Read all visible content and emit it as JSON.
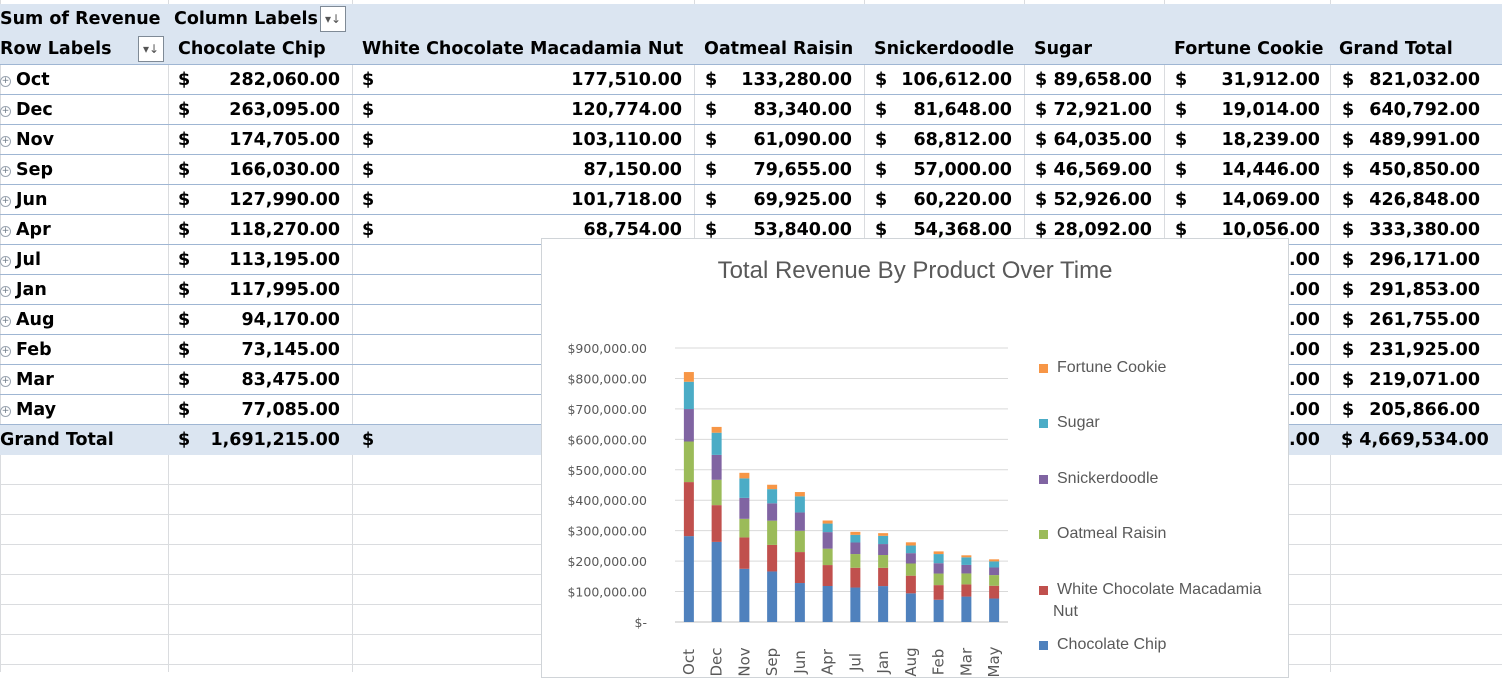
{
  "pivot": {
    "value_label": "Sum of  Revenue",
    "column_labels": "Column Labels",
    "row_labels": "Row Labels",
    "columns": [
      "Chocolate Chip",
      "White Chocolate Macadamia Nut",
      "Oatmeal Raisin",
      "Snickerdoodle",
      "Sugar",
      "Fortune Cookie",
      "Grand Total"
    ],
    "rows": [
      {
        "label": "Oct",
        "cc": "282,060.00",
        "wcm": "177,510.00",
        "or": "133,280.00",
        "sn": "106,612.00",
        "su": "89,658.00",
        "fc": "31,912.00",
        "gt": "821,032.00"
      },
      {
        "label": "Dec",
        "cc": "263,095.00",
        "wcm": "120,774.00",
        "or": "83,340.00",
        "sn": "81,648.00",
        "su": "72,921.00",
        "fc": "19,014.00",
        "gt": "640,792.00"
      },
      {
        "label": "Nov",
        "cc": "174,705.00",
        "wcm": "103,110.00",
        "or": "61,090.00",
        "sn": "68,812.00",
        "su": "64,035.00",
        "fc": "18,239.00",
        "gt": "489,991.00"
      },
      {
        "label": "Sep",
        "cc": "166,030.00",
        "wcm": "87,150.00",
        "or": "79,655.00",
        "sn": "57,000.00",
        "su": "46,569.00",
        "fc": "14,446.00",
        "gt": "450,850.00"
      },
      {
        "label": "Jun",
        "cc": "127,990.00",
        "wcm": "101,718.00",
        "or": "69,925.00",
        "sn": "60,220.00",
        "su": "52,926.00",
        "fc": "14,069.00",
        "gt": "426,848.00"
      },
      {
        "label": "Apr",
        "cc": "118,270.00",
        "wcm": "68,754.00",
        "or": "53,840.00",
        "sn": "54,368.00",
        "su": "28,092.00",
        "fc": "10,056.00",
        "gt": "333,380.00"
      },
      {
        "label": "Jul",
        "cc": "113,195.00",
        "wcm": "",
        "or": "",
        "sn": "",
        "su": "",
        "fc": ".00",
        "gt": "296,171.00"
      },
      {
        "label": "Jan",
        "cc": "117,995.00",
        "wcm": "",
        "or": "",
        "sn": "",
        "su": "",
        "fc": ".00",
        "gt": "291,853.00"
      },
      {
        "label": "Aug",
        "cc": "94,170.00",
        "wcm": "",
        "or": "",
        "sn": "",
        "su": "",
        "fc": ".00",
        "gt": "261,755.00"
      },
      {
        "label": "Feb",
        "cc": "73,145.00",
        "wcm": "",
        "or": "",
        "sn": "",
        "su": "",
        "fc": ".00",
        "gt": "231,925.00"
      },
      {
        "label": "Mar",
        "cc": "83,475.00",
        "wcm": "",
        "or": "",
        "sn": "",
        "su": "",
        "fc": ".00",
        "gt": "219,071.00"
      },
      {
        "label": "May",
        "cc": "77,085.00",
        "wcm": "",
        "or": "",
        "sn": "",
        "su": "",
        "fc": ".00",
        "gt": "205,866.00"
      }
    ],
    "grand_total": {
      "label": "Grand Total",
      "cc": "1,691,215.00",
      "fc": ".00",
      "gt": "$ 4,669,534.00"
    },
    "currency": "$"
  },
  "colors": {
    "header_bg": "#dbe5f1",
    "row_line": "#9fb6d3",
    "gridline": "#dadcdf"
  },
  "chart_data": {
    "type": "bar",
    "stacked": true,
    "title": "Total Revenue By Product Over Time",
    "categories": [
      "Oct",
      "Dec",
      "Nov",
      "Sep",
      "Jun",
      "Apr",
      "Jul",
      "Jan",
      "Aug",
      "Feb",
      "Mar",
      "May"
    ],
    "ylim": [
      0,
      900000
    ],
    "yticks": [
      "$-",
      "$100,000.00",
      "$200,000.00",
      "$300,000.00",
      "$400,000.00",
      "$500,000.00",
      "$600,000.00",
      "$700,000.00",
      "$800,000.00",
      "$900,000.00"
    ],
    "grid": true,
    "legend_position": "right",
    "series": [
      {
        "name": "Chocolate Chip",
        "color": "#4f81bd",
        "values": [
          282060,
          263095,
          174705,
          166030,
          127990,
          118270,
          113195,
          117995,
          94170,
          73145,
          83475,
          77085
        ]
      },
      {
        "name": "White Chocolate Macadamia Nut",
        "color": "#c0504d",
        "values": [
          177510,
          120774,
          103110,
          87150,
          101718,
          68754,
          65000,
          60000,
          58000,
          48000,
          40000,
          42000
        ]
      },
      {
        "name": "Oatmeal Raisin",
        "color": "#9bbb59",
        "values": [
          133280,
          83340,
          61090,
          79655,
          69925,
          53840,
          45000,
          42000,
          40000,
          38000,
          36000,
          35000
        ]
      },
      {
        "name": "Snickerdoodle",
        "color": "#8064a2",
        "values": [
          106612,
          81648,
          68812,
          57000,
          60220,
          54368,
          38000,
          36000,
          34000,
          34000,
          28000,
          25000
        ]
      },
      {
        "name": "Sugar",
        "color": "#4bacc6",
        "values": [
          89658,
          72921,
          64035,
          46569,
          52926,
          28092,
          25000,
          27000,
          25000,
          30000,
          25000,
          20000
        ]
      },
      {
        "name": "Fortune Cookie",
        "color": "#f79646",
        "values": [
          31912,
          19014,
          18239,
          14446,
          14069,
          10056,
          9976,
          8858,
          10585,
          8780,
          6596,
          6781
        ]
      }
    ],
    "legend": [
      "Fortune Cookie",
      "Sugar",
      "Snickerdoodle",
      "Oatmeal Raisin",
      "White Chocolate Macadamia Nut",
      "Chocolate Chip"
    ],
    "legend_lines": [
      [
        "Fortune Cookie"
      ],
      [
        "Sugar"
      ],
      [
        "Snickerdoodle"
      ],
      [
        "Oatmeal Raisin"
      ],
      [
        "White Chocolate Macadamia",
        "Nut"
      ],
      [
        "Chocolate Chip"
      ]
    ]
  }
}
